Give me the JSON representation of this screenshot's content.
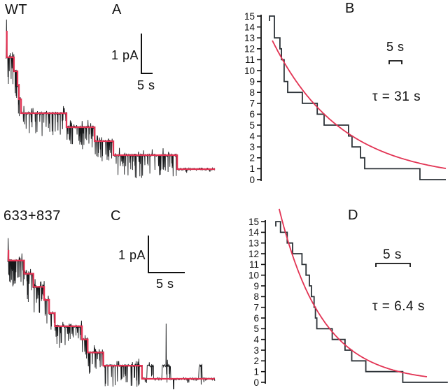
{
  "figure": {
    "background": "#ffffff",
    "colors": {
      "trace": "#16181a",
      "staircase": "#2c3237",
      "fit_red": "#e23353",
      "axis": "#111111",
      "text": "#111111"
    }
  },
  "panels": {
    "A": {
      "group_label": "WT",
      "letter": "A",
      "scalebar_current": "1 pA",
      "scalebar_time": "5 s"
    },
    "B": {
      "letter": "B",
      "scalebar_time": "5 s",
      "tau_annotation": "τ = 31 s"
    },
    "C": {
      "group_label": "633+837",
      "letter": "C",
      "scalebar_current": "1 pA",
      "scalebar_time": "5 s"
    },
    "D": {
      "letter": "D",
      "scalebar_time": "5 s",
      "tau_annotation": "τ = 6.4 s"
    }
  },
  "chart_data": [
    {
      "panel": "A",
      "type": "line",
      "subtype": "single-channel-current-trace-with-idealized-staircase-fit",
      "group_label": "WT",
      "x_unit": "s",
      "y_unit": "pA",
      "scale_bar": {
        "current_pA": 1,
        "time_s": 5
      },
      "unit_current_pA": 0.35,
      "duration_s": 88,
      "step_format": [
        "open_channels",
        "t_start_s",
        "t_end_s"
      ],
      "idealized_steps": [
        [
          8,
          0.5,
          3.5
        ],
        [
          7,
          3.5,
          5.0
        ],
        [
          6,
          5.0,
          5.6
        ],
        [
          5,
          5.6,
          6.5
        ],
        [
          4,
          6.5,
          25.6
        ],
        [
          3,
          25.6,
          37.4
        ],
        [
          2,
          37.4,
          45.3
        ],
        [
          1,
          45.3,
          72.1
        ],
        [
          0,
          72.1,
          88.0
        ]
      ],
      "red_onset_level": 9.9,
      "onset_spike_level": 10.7
    },
    {
      "panel": "B",
      "type": "line",
      "subtype": "open-channel-count-staircase-with-exponential-fit",
      "x_unit": "s",
      "ylim": [
        0,
        15
      ],
      "y_ticks": [
        0,
        1,
        2,
        3,
        4,
        5,
        6,
        7,
        8,
        9,
        10,
        11,
        12,
        13,
        14,
        15
      ],
      "scale_bar": {
        "time_s": 5
      },
      "tau_s": 31,
      "annotation": "τ = 31 s",
      "step_format": [
        "level",
        "t_start_s",
        "t_end_s"
      ],
      "steps": [
        [
          15,
          0,
          2.2
        ],
        [
          13,
          2.2,
          4.7
        ],
        [
          12,
          4.7,
          5.4
        ],
        [
          11,
          5.4,
          6.6
        ],
        [
          9,
          6.6,
          8.2
        ],
        [
          8,
          8.2,
          14.8
        ],
        [
          7,
          14.8,
          21.5
        ],
        [
          6,
          21.5,
          24.6
        ],
        [
          5,
          24.6,
          35.6
        ],
        [
          4,
          35.6,
          37.2
        ],
        [
          3,
          37.2,
          41.0
        ],
        [
          2,
          41.0,
          42.9
        ],
        [
          1,
          42.9,
          67.8
        ],
        [
          0,
          67.8,
          79.5
        ]
      ],
      "fit": {
        "type": "exponential",
        "N0": 13.3,
        "tau_s": 31,
        "t_start_s": 1.3,
        "t_end_s": 79.5
      }
    },
    {
      "panel": "C",
      "type": "line",
      "subtype": "single-channel-current-trace-with-idealized-staircase-fit",
      "group_label": "633+837",
      "x_unit": "s",
      "y_unit": "pA",
      "scale_bar": {
        "current_pA": 1,
        "time_s": 5
      },
      "unit_current_pA": 0.36,
      "duration_s": 29.3,
      "step_format": [
        "open_channels",
        "t_start_s",
        "t_end_s"
      ],
      "idealized_steps": [
        [
          9,
          0.4,
          2.6
        ],
        [
          8,
          2.6,
          3.9
        ],
        [
          7,
          3.9,
          5.4
        ],
        [
          6,
          5.4,
          6.1
        ],
        [
          5,
          6.1,
          6.9
        ],
        [
          4,
          6.9,
          10.7
        ],
        [
          3,
          10.7,
          11.5
        ],
        [
          2,
          11.5,
          13.7
        ],
        [
          1,
          13.7,
          19.1
        ],
        [
          0,
          19.1,
          29.3
        ]
      ],
      "red_onset_level": 9.8,
      "onset_spike_level": 10.7,
      "reopenings": [
        {
          "t_start": 19.8,
          "t_end": 20.7,
          "level": 1
        },
        {
          "t_start": 21.9,
          "t_end": 23.1,
          "level": 1
        },
        {
          "t_start": 27.1,
          "t_end": 27.5,
          "level": 1
        }
      ],
      "spike_events": [
        {
          "t": 22.45,
          "peak_level": 4.2
        }
      ],
      "artifact_dip": {
        "t": 23.5,
        "depth_levels": 0.8
      }
    },
    {
      "panel": "D",
      "type": "line",
      "subtype": "open-channel-count-staircase-with-exponential-fit",
      "x_unit": "s",
      "ylim": [
        0,
        15
      ],
      "y_ticks": [
        0,
        1,
        2,
        3,
        4,
        5,
        6,
        7,
        8,
        9,
        10,
        11,
        12,
        13,
        14,
        15
      ],
      "scale_bar": {
        "time_s": 5
      },
      "tau_s": 6.4,
      "annotation": "τ = 6.4 s",
      "step_format": [
        "level",
        "t_start_s",
        "t_end_s"
      ],
      "steps": [
        [
          15,
          0,
          0.7
        ],
        [
          14,
          0.7,
          1.7
        ],
        [
          13,
          1.7,
          2.5
        ],
        [
          12,
          2.5,
          3.9
        ],
        [
          11,
          3.9,
          4.5
        ],
        [
          10,
          4.5,
          5.0
        ],
        [
          9,
          5.0,
          5.3
        ],
        [
          8,
          5.3,
          5.7
        ],
        [
          7,
          5.7,
          5.9
        ],
        [
          6,
          5.9,
          6.1
        ],
        [
          5,
          6.1,
          8.4
        ],
        [
          4,
          8.4,
          10.3
        ],
        [
          3,
          10.3,
          11.3
        ],
        [
          2,
          11.3,
          13.4
        ],
        [
          1,
          13.4,
          18.9
        ],
        [
          0,
          18.9,
          25.6
        ]
      ],
      "fit": {
        "type": "exponential",
        "N0": 17.5,
        "tau_s": 6.4,
        "t_start_s": 0.5,
        "t_end_s": 22.5
      }
    }
  ]
}
